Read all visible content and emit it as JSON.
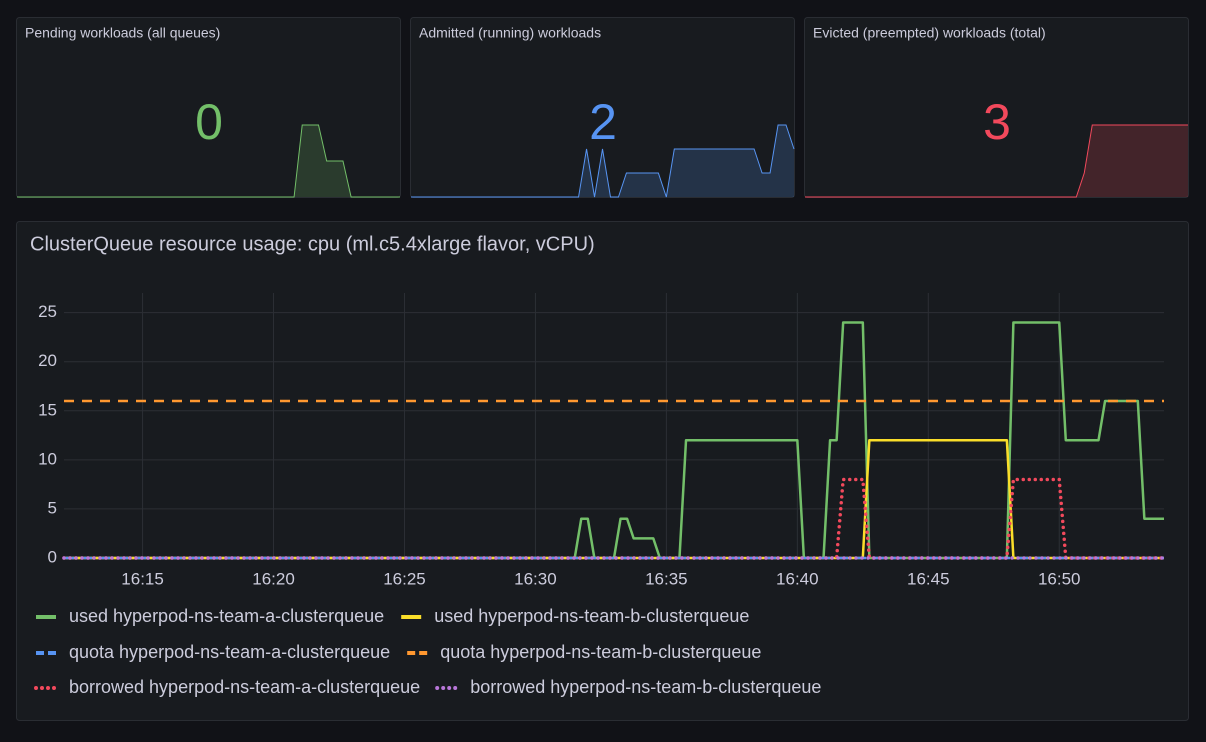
{
  "stat_panels": [
    {
      "title": "Pending workloads (all queues)",
      "value": 0,
      "color": "#73bf69",
      "sparkline": [
        0,
        0,
        0,
        0,
        0,
        0,
        0,
        0,
        0,
        0,
        0,
        0,
        0,
        0,
        0,
        0,
        0,
        0,
        0,
        0,
        0,
        0,
        0,
        0,
        0,
        0,
        0,
        0,
        0,
        0,
        0,
        0,
        0,
        0,
        0,
        2,
        2,
        2,
        1,
        1,
        1,
        0,
        0,
        0,
        0,
        0,
        0,
        0
      ]
    },
    {
      "title": "Admitted (running) workloads",
      "value": 2,
      "color": "#5794f2",
      "sparkline": [
        0,
        0,
        0,
        0,
        0,
        0,
        0,
        0,
        0,
        0,
        0,
        0,
        0,
        0,
        0,
        0,
        0,
        0,
        0,
        0,
        0,
        0,
        2,
        0,
        2,
        0,
        0,
        1,
        1,
        1,
        1,
        1,
        0,
        2,
        2,
        2,
        2,
        2,
        2,
        2,
        2,
        2,
        2,
        2,
        1,
        1,
        3,
        3,
        2
      ]
    },
    {
      "title": "Evicted (preempted) workloads (total)",
      "value": 3,
      "color": "#f2495c",
      "sparkline": [
        0,
        0,
        0,
        0,
        0,
        0,
        0,
        0,
        0,
        0,
        0,
        0,
        0,
        0,
        0,
        0,
        0,
        0,
        0,
        0,
        0,
        0,
        0,
        0,
        0,
        0,
        0,
        0,
        0,
        0,
        0,
        0,
        0,
        0,
        0,
        1,
        3,
        3,
        3,
        3,
        3,
        3,
        3,
        3,
        3,
        3,
        3,
        3,
        3
      ]
    }
  ],
  "chart_data": {
    "type": "line",
    "title": "ClusterQueue resource usage: cpu (ml.c5.4xlarge flavor, vCPU)",
    "xlim": [
      972,
      1014
    ],
    "xticks": [
      {
        "value": 975,
        "label": "16:15"
      },
      {
        "value": 980,
        "label": "16:20"
      },
      {
        "value": 985,
        "label": "16:25"
      },
      {
        "value": 990,
        "label": "16:30"
      },
      {
        "value": 995,
        "label": "16:35"
      },
      {
        "value": 1000,
        "label": "16:40"
      },
      {
        "value": 1005,
        "label": "16:45"
      },
      {
        "value": 1010,
        "label": "16:50"
      }
    ],
    "ylim": [
      0,
      27
    ],
    "yticks": [
      0,
      5,
      10,
      15,
      20,
      25
    ],
    "grid": true,
    "legend": "bottom",
    "series": [
      {
        "name": "used hyperpod-ns-team-a-clusterqueue",
        "color": "#73bf69",
        "line_style": "solid",
        "x": [
          972,
          991.5,
          991.75,
          992,
          992.25,
          993,
          993.25,
          993.5,
          993.75,
          994.5,
          994.75,
          995.5,
          995.75,
          1000,
          1000.25,
          1001,
          1001.25,
          1001.5,
          1001.75,
          1002.5,
          1002.75,
          1008,
          1008.25,
          1010,
          1010.25,
          1011.5,
          1011.75,
          1013,
          1013.25,
          1014
        ],
        "values": [
          0,
          0,
          4,
          4,
          0,
          0,
          4,
          4,
          2,
          2,
          0,
          0,
          12,
          12,
          0,
          0,
          12,
          12,
          24,
          24,
          0,
          0,
          24,
          24,
          12,
          12,
          16,
          16,
          4,
          4
        ]
      },
      {
        "name": "used hyperpod-ns-team-b-clusterqueue",
        "color": "#fade2a",
        "line_style": "solid",
        "x": [
          972,
          1002.5,
          1002.75,
          1008,
          1008.25,
          1014
        ],
        "values": [
          0,
          0,
          12,
          12,
          0,
          0
        ]
      },
      {
        "name": "quota hyperpod-ns-team-a-clusterqueue",
        "color": "#5794f2",
        "line_style": "dashed",
        "x": [
          972,
          1014
        ],
        "values": [
          0,
          0
        ]
      },
      {
        "name": "quota hyperpod-ns-team-b-clusterqueue",
        "color": "#ff9830",
        "line_style": "dashed",
        "x": [
          972,
          1014
        ],
        "values": [
          16,
          16
        ]
      },
      {
        "name": "borrowed hyperpod-ns-team-a-clusterqueue",
        "color": "#f2495c",
        "line_style": "dotted",
        "x": [
          972,
          1001.5,
          1001.75,
          1002.5,
          1002.75,
          1008,
          1008.25,
          1010,
          1010.25,
          1014
        ],
        "values": [
          0,
          0,
          8,
          8,
          0,
          0,
          8,
          8,
          0,
          0
        ]
      },
      {
        "name": "borrowed hyperpod-ns-team-b-clusterqueue",
        "color": "#b877d9",
        "line_style": "dotted",
        "x": [
          972,
          1014
        ],
        "values": [
          0,
          0
        ]
      }
    ]
  }
}
